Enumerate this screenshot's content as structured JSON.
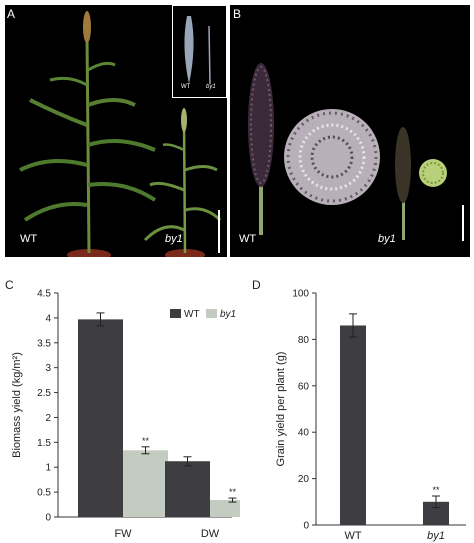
{
  "panels": {
    "a": {
      "label": "A",
      "plant_labels": [
        "WT",
        "by1"
      ],
      "inset_labels": [
        "WT",
        "by1"
      ]
    },
    "b": {
      "label": "B",
      "plant_labels": [
        "WT",
        "by1"
      ]
    },
    "c": {
      "label": "C"
    },
    "d": {
      "label": "D"
    }
  },
  "colors": {
    "wt": "#3d3d42",
    "by1": "#c4cbc0",
    "photo_bg": "#000000"
  },
  "chart_data": [
    {
      "type": "bar",
      "categories": [
        "FW",
        "DW"
      ],
      "series": [
        {
          "name": "WT",
          "values": [
            3.97,
            1.12
          ],
          "errors": [
            0.13,
            0.09
          ]
        },
        {
          "name": "by1",
          "values": [
            1.34,
            0.34
          ],
          "errors": [
            0.07,
            0.04
          ]
        }
      ],
      "significance": [
        [
          "",
          "**"
        ],
        [
          "",
          "**"
        ]
      ],
      "xlabel": "",
      "ylabel": "Biomass yield (kg/m²)",
      "ylim": [
        0,
        4.5
      ],
      "yticks": [
        "0",
        "0.5",
        "1",
        "1.5",
        "2",
        "2.5",
        "3",
        "3.5",
        "4",
        "4.5"
      ],
      "legend": "top-right"
    },
    {
      "type": "bar",
      "categories": [
        "WT",
        "by1"
      ],
      "values": [
        86,
        10
      ],
      "errors": [
        5,
        2.5
      ],
      "significance": [
        "",
        "**"
      ],
      "xlabel": "",
      "ylabel": "Grain yield per plant (g)",
      "ylim": [
        0,
        100
      ],
      "yticks": [
        "0",
        "20",
        "40",
        "60",
        "80",
        "100"
      ]
    }
  ]
}
